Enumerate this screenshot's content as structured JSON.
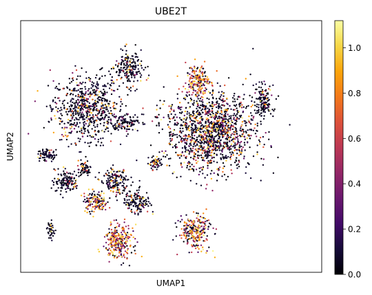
{
  "chart_data": {
    "type": "scatter",
    "title": "UBE2T",
    "xlabel": "UMAP1",
    "ylabel": "UMAP2",
    "axis_ticks": "none",
    "colormap": "inferno",
    "colorbar": {
      "range": [
        0.0,
        1.12
      ],
      "ticks": [
        0.0,
        0.2,
        0.4,
        0.6,
        0.8,
        1.0
      ],
      "tick_labels": [
        "0.0",
        "0.2",
        "0.4",
        "0.6",
        "0.8",
        "1.0"
      ]
    },
    "clusters": [
      {
        "center": [
          -6.5,
          3.0
        ],
        "spread": [
          2.6,
          2.0
        ],
        "n": 700,
        "mean_expr": 0.15
      },
      {
        "center": [
          -3.2,
          5.3
        ],
        "spread": [
          1.1,
          1.0
        ],
        "n": 200,
        "mean_expr": 0.12
      },
      {
        "center": [
          -3.6,
          2.1
        ],
        "spread": [
          1.1,
          0.5
        ],
        "n": 120,
        "mean_expr": 0.1
      },
      {
        "center": [
          -9.5,
          0.2
        ],
        "spread": [
          0.7,
          0.3
        ],
        "n": 80,
        "mean_expr": 0.08
      },
      {
        "center": [
          -6.6,
          -0.6
        ],
        "spread": [
          0.6,
          0.5
        ],
        "n": 60,
        "mean_expr": 0.08
      },
      {
        "center": [
          -8.0,
          -1.4
        ],
        "spread": [
          0.9,
          0.7
        ],
        "n": 140,
        "mean_expr": 0.12
      },
      {
        "center": [
          -4.3,
          -1.4
        ],
        "spread": [
          1.0,
          0.7
        ],
        "n": 160,
        "mean_expr": 0.15
      },
      {
        "center": [
          -1.2,
          -0.3
        ],
        "spread": [
          0.5,
          0.4
        ],
        "n": 60,
        "mean_expr": 0.3
      },
      {
        "center": [
          -2.6,
          -2.6
        ],
        "spread": [
          1.0,
          0.7
        ],
        "n": 150,
        "mean_expr": 0.12
      },
      {
        "center": [
          -5.8,
          -2.6
        ],
        "spread": [
          0.9,
          0.6
        ],
        "n": 140,
        "mean_expr": 0.45
      },
      {
        "center": [
          -4.0,
          -5.0
        ],
        "spread": [
          1.1,
          1.0
        ],
        "n": 260,
        "mean_expr": 0.55
      },
      {
        "center": [
          3.0,
          1.6
        ],
        "spread": [
          3.4,
          2.3
        ],
        "n": 1400,
        "mean_expr": 0.22
      },
      {
        "center": [
          2.0,
          4.6
        ],
        "spread": [
          0.9,
          1.0
        ],
        "n": 200,
        "mean_expr": 0.5
      },
      {
        "center": [
          7.0,
          3.4
        ],
        "spread": [
          0.8,
          1.0
        ],
        "n": 150,
        "mean_expr": 0.1
      },
      {
        "center": [
          1.8,
          -4.4
        ],
        "spread": [
          1.2,
          1.0
        ],
        "n": 260,
        "mean_expr": 0.5
      },
      {
        "center": [
          -9.2,
          -4.3
        ],
        "spread": [
          0.3,
          0.5
        ],
        "n": 40,
        "mean_expr": 0.05
      }
    ]
  }
}
